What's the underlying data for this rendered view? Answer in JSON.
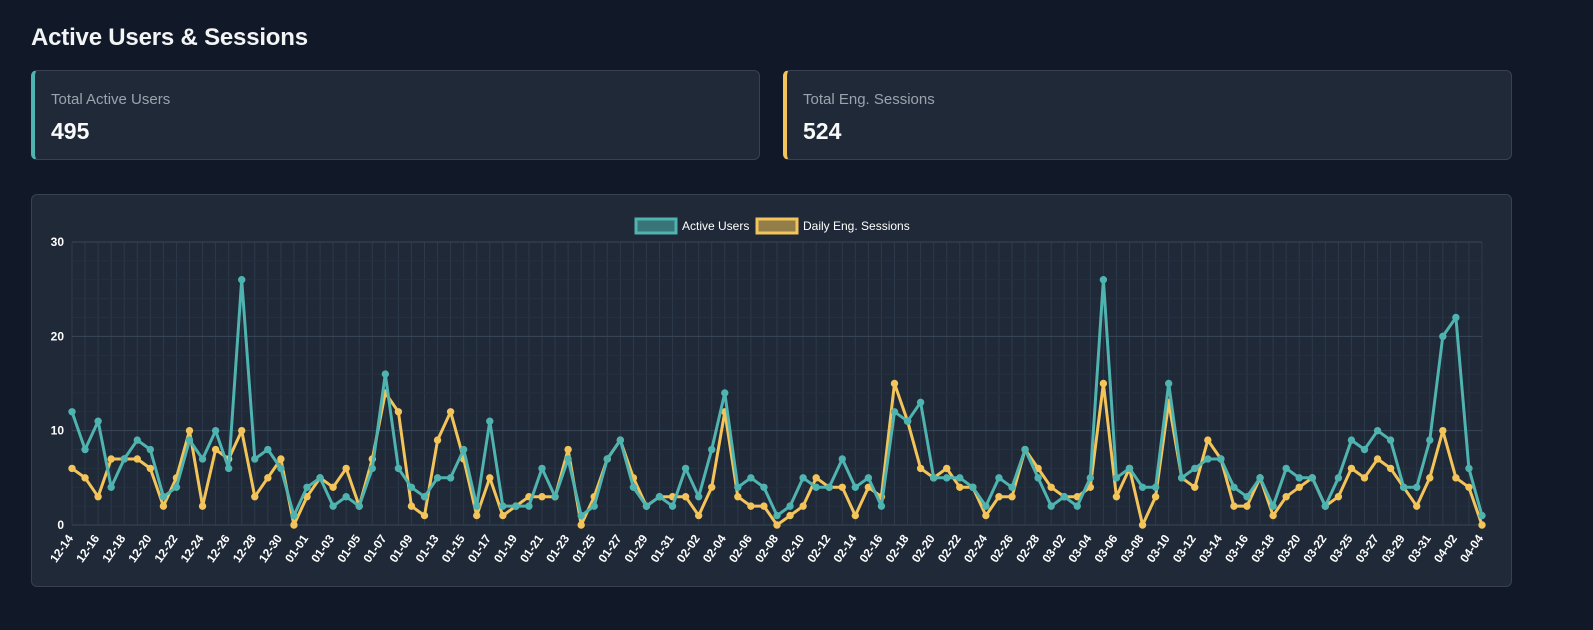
{
  "page": {
    "title": "Active Users & Sessions"
  },
  "stats": [
    {
      "label": "Total Active Users",
      "value": "495"
    },
    {
      "label": "Total Eng. Sessions",
      "value": "524"
    }
  ],
  "colors": {
    "users": "#4fb3b0",
    "sessions": "#f2c45a",
    "background": "#111827",
    "card": "#1f2937"
  },
  "chart_data": {
    "type": "line",
    "title": "",
    "xlabel": "",
    "ylabel": "",
    "ylim": [
      0,
      30
    ],
    "yticks": [
      0,
      10,
      20,
      30
    ],
    "grid": true,
    "legend_position": "top-center",
    "x": [
      "12-14",
      "12-15",
      "12-16",
      "12-17",
      "12-18",
      "12-19",
      "12-20",
      "12-21",
      "12-22",
      "12-23",
      "12-24",
      "12-25",
      "12-26",
      "12-27",
      "12-28",
      "12-29",
      "12-30",
      "12-31",
      "01-01",
      "01-02",
      "01-03",
      "01-04",
      "01-05",
      "01-06",
      "01-07",
      "01-08",
      "01-09",
      "01-10",
      "01-13",
      "01-14",
      "01-15",
      "01-16",
      "01-17",
      "01-18",
      "01-19",
      "01-20",
      "01-21",
      "01-22",
      "01-23",
      "01-24",
      "01-25",
      "01-26",
      "01-27",
      "01-28",
      "01-29",
      "01-30",
      "01-31",
      "02-01",
      "02-02",
      "02-03",
      "02-04",
      "02-05",
      "02-06",
      "02-07",
      "02-08",
      "02-09",
      "02-10",
      "02-11",
      "02-12",
      "02-13",
      "02-14",
      "02-15",
      "02-16",
      "02-17",
      "02-18",
      "02-19",
      "02-20",
      "02-21",
      "02-22",
      "02-23",
      "02-24",
      "02-25",
      "02-26",
      "02-27",
      "02-28",
      "03-01",
      "03-02",
      "03-03",
      "03-04",
      "03-05",
      "03-06",
      "03-07",
      "03-08",
      "03-09",
      "03-10",
      "03-11",
      "03-12",
      "03-13",
      "03-14",
      "03-15",
      "03-16",
      "03-17",
      "03-18",
      "03-19",
      "03-20",
      "03-21",
      "03-22",
      "03-23",
      "03-25",
      "03-26",
      "03-27",
      "03-28",
      "03-29",
      "03-30",
      "03-31",
      "04-01",
      "04-02",
      "04-03",
      "04-04"
    ],
    "x_tick_labels": [
      "12-14",
      "12-16",
      "12-18",
      "12-20",
      "12-22",
      "12-24",
      "12-26",
      "12-28",
      "12-30",
      "01-01",
      "01-03",
      "01-05",
      "01-07",
      "01-09",
      "01-13",
      "01-15",
      "01-17",
      "01-19",
      "01-21",
      "01-23",
      "01-25",
      "01-27",
      "01-29",
      "01-31",
      "02-02",
      "02-04",
      "02-06",
      "02-08",
      "02-10",
      "02-12",
      "02-14",
      "02-16",
      "02-18",
      "02-20",
      "02-22",
      "02-24",
      "02-26",
      "02-28",
      "03-02",
      "03-04",
      "03-06",
      "03-08",
      "03-10",
      "03-12",
      "03-14",
      "03-16",
      "03-18",
      "03-20",
      "03-22",
      "03-25",
      "03-27",
      "03-29",
      "03-31",
      "04-02",
      "04-04"
    ],
    "series": [
      {
        "name": "Active Users",
        "color": "#4fb3b0",
        "values": [
          12,
          8,
          11,
          4,
          7,
          9,
          8,
          3,
          4,
          9,
          7,
          10,
          6,
          26,
          7,
          8,
          6,
          1,
          4,
          5,
          2,
          3,
          2,
          6,
          16,
          6,
          4,
          3,
          5,
          5,
          8,
          2,
          11,
          2,
          2,
          2,
          6,
          3,
          7,
          1,
          2,
          7,
          9,
          4,
          2,
          3,
          2,
          6,
          3,
          8,
          14,
          4,
          5,
          4,
          1,
          2,
          5,
          4,
          4,
          7,
          4,
          5,
          2,
          12,
          11,
          13,
          5,
          5,
          5,
          4,
          2,
          5,
          4,
          8,
          5,
          2,
          3,
          2,
          5,
          26,
          5,
          6,
          4,
          4,
          15,
          5,
          6,
          7,
          7,
          4,
          3,
          5,
          2,
          6,
          5,
          5,
          2,
          5,
          9,
          8,
          10,
          9,
          4,
          4,
          9,
          20,
          22,
          6,
          1
        ]
      },
      {
        "name": "Daily Eng. Sessions",
        "color": "#f2c45a",
        "values": [
          6,
          5,
          3,
          7,
          7,
          7,
          6,
          2,
          5,
          10,
          2,
          8,
          7,
          10,
          3,
          5,
          7,
          0,
          3,
          5,
          4,
          6,
          2,
          7,
          14,
          12,
          2,
          1,
          9,
          12,
          7,
          1,
          5,
          1,
          2,
          3,
          3,
          3,
          8,
          0,
          3,
          7,
          9,
          5,
          2,
          3,
          3,
          3,
          1,
          4,
          12,
          3,
          2,
          2,
          0,
          1,
          2,
          5,
          4,
          4,
          1,
          4,
          3,
          15,
          11,
          6,
          5,
          6,
          4,
          4,
          1,
          3,
          3,
          8,
          6,
          4,
          3,
          3,
          4,
          15,
          3,
          6,
          0,
          3,
          13,
          5,
          4,
          9,
          7,
          2,
          2,
          5,
          1,
          3,
          4,
          5,
          2,
          3,
          6,
          5,
          7,
          6,
          4,
          2,
          5,
          10,
          5,
          4,
          0
        ]
      }
    ]
  }
}
